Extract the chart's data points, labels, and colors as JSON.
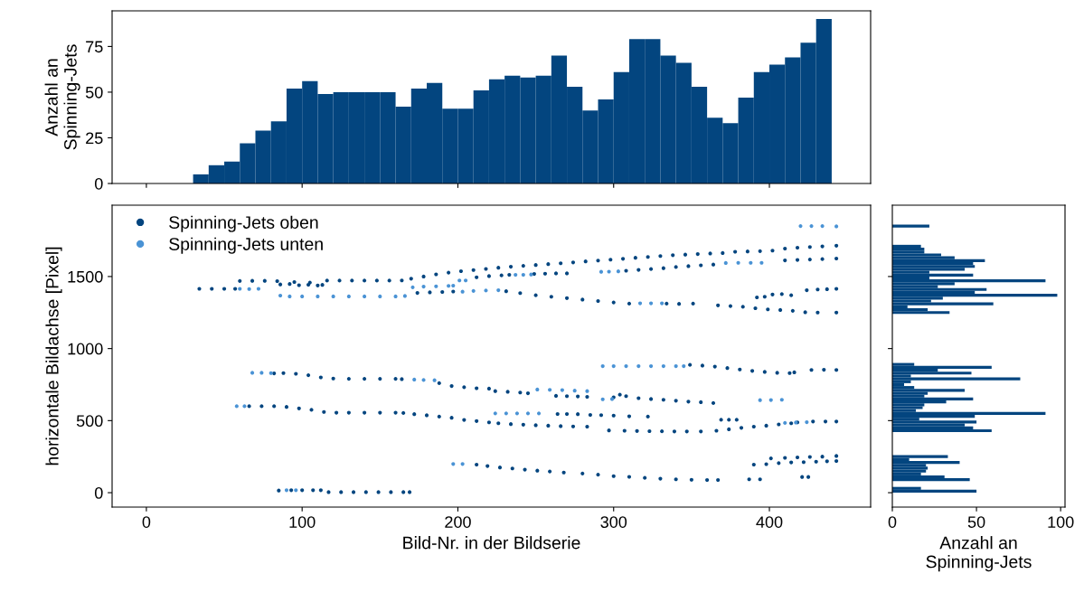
{
  "chart_data": [
    {
      "type": "histogram",
      "ylabel": "Anzahl an\nSpinning-Jets",
      "color": "#03457f",
      "bins": [
        30,
        40,
        50,
        60,
        70,
        80,
        90,
        100,
        110,
        120,
        130,
        140,
        150,
        160,
        170,
        180,
        190,
        200,
        210,
        220,
        230,
        240,
        250,
        260,
        270,
        280,
        290,
        300,
        310,
        320,
        330,
        340,
        350,
        360,
        370,
        380,
        390,
        400,
        410,
        420,
        430,
        440
      ],
      "values": [
        5,
        10,
        12,
        22,
        29,
        34,
        52,
        56,
        49,
        50,
        50,
        50,
        50,
        42,
        52,
        55,
        41,
        41,
        51,
        57,
        59,
        58,
        59,
        70,
        53,
        40,
        46,
        61,
        79,
        79,
        70,
        66,
        53,
        36,
        33,
        47,
        61,
        65,
        69,
        77,
        90
      ],
      "xlim": [
        -22,
        465
      ],
      "ylim": [
        0,
        94.5
      ],
      "xticks": [
        {
          "value": 0,
          "label": null
        },
        {
          "value": 100,
          "label": null
        },
        {
          "value": 200,
          "label": null
        },
        {
          "value": 300,
          "label": null
        },
        {
          "value": 400,
          "label": null
        }
      ],
      "yticks": [
        0,
        25,
        50,
        75
      ],
      "tick_labels": "y"
    },
    {
      "type": "scatter",
      "xlabel": "Bild-Nr. in der Bildserie",
      "ylabel": "horizontale Bildachse [Pixel]",
      "legend": "top left",
      "marker": "circle",
      "xlim": [
        -22,
        465
      ],
      "ylim": [
        -100,
        1995
      ],
      "xticks": [
        0,
        100,
        200,
        300,
        400
      ],
      "yticks": [
        0,
        500,
        1000,
        1500
      ],
      "series": [
        {
          "name": "Spinning-Jets oben",
          "color": "#03457f",
          "x": [
            34,
            42,
            50,
            57,
            60,
            68,
            76,
            84,
            86,
            92,
            98,
            104,
            110,
            113,
            95,
            105,
            116,
            124,
            132,
            140,
            148,
            156,
            164,
            170,
            178,
            186,
            194,
            202,
            210,
            218,
            226,
            234,
            242,
            250,
            258,
            266,
            274,
            282,
            290,
            298,
            306,
            314,
            322,
            330,
            338,
            346,
            354,
            362,
            370,
            378,
            386,
            394,
            402,
            410,
            418,
            426,
            434,
            443,
            174,
            182,
            190,
            197,
            212,
            220,
            228,
            233,
            249,
            256,
            263,
            270,
            308,
            316,
            324,
            332,
            340,
            348,
            356,
            364,
            410,
            418,
            426,
            434,
            443,
            231,
            240,
            250,
            260,
            270,
            280,
            290,
            300,
            310,
            334,
            342,
            351,
            367,
            375,
            383,
            391,
            399,
            407,
            415,
            423,
            431,
            443,
            392,
            397,
            402,
            408,
            414,
            424,
            431,
            437,
            443,
            82,
            88,
            96,
            104,
            112,
            120,
            130,
            140,
            150,
            160,
            164,
            188,
            196,
            204,
            212,
            220,
            224,
            232,
            240,
            245,
            263,
            270,
            277,
            283,
            349,
            357,
            365,
            373,
            381,
            389,
            397,
            405,
            413,
            416,
            427,
            435,
            443,
            300,
            304,
            308,
            316,
            324,
            332,
            340,
            348,
            356,
            364,
            66,
            74,
            82,
            90,
            98,
            106,
            114,
            122,
            130,
            140,
            150,
            160,
            165,
            172,
            180,
            188,
            196,
            204,
            212,
            220,
            226,
            234,
            242,
            250,
            258,
            266,
            274,
            283,
            264,
            270,
            277,
            285,
            292,
            300,
            310,
            322,
            297,
            307,
            315,
            323,
            331,
            339,
            347,
            356,
            366,
            374,
            382,
            390,
            398,
            406,
            414,
            418,
            369,
            374,
            379,
            428,
            436,
            443,
            212,
            219,
            227,
            235,
            243,
            251,
            259,
            268,
            280,
            290,
            300,
            310,
            320,
            330,
            340,
            350,
            360,
            367,
            387,
            394,
            421,
            425,
            390,
            398,
            406,
            414,
            422,
            430,
            437,
            443,
            401,
            410,
            418,
            426,
            434,
            443,
            85,
            93,
            100,
            107,
            112,
            117,
            125,
            133,
            141,
            149,
            157,
            165,
            169
          ],
          "values": [
            1415,
            1415,
            1415,
            1415,
            1469,
            1470,
            1470,
            1468,
            1445,
            1448,
            1440,
            1443,
            1438,
            1442,
            1462,
            1458,
            1472,
            1472,
            1472,
            1472,
            1472,
            1472,
            1473,
            1485,
            1500,
            1515,
            1527,
            1537,
            1545,
            1553,
            1561,
            1568,
            1574,
            1580,
            1586,
            1592,
            1598,
            1605,
            1611,
            1617,
            1623,
            1630,
            1636,
            1642,
            1648,
            1652,
            1656,
            1660,
            1663,
            1672,
            1674,
            1676,
            1680,
            1694,
            1700,
            1705,
            1709,
            1714,
            1386,
            1390,
            1393,
            1396,
            1495,
            1503,
            1508,
            1512,
            1518,
            1520,
            1522,
            1522,
            1540,
            1546,
            1552,
            1558,
            1566,
            1572,
            1578,
            1583,
            1612,
            1615,
            1618,
            1621,
            1625,
            1398,
            1385,
            1370,
            1360,
            1350,
            1340,
            1330,
            1320,
            1312,
            1312,
            1310,
            1312,
            1300,
            1295,
            1290,
            1280,
            1272,
            1268,
            1262,
            1252,
            1250,
            1250,
            1355,
            1360,
            1375,
            1378,
            1370,
            1405,
            1410,
            1412,
            1415,
            828,
            830,
            825,
            815,
            800,
            792,
            790,
            790,
            790,
            790,
            788,
            760,
            740,
            732,
            725,
            722,
            705,
            700,
            695,
            690,
            672,
            670,
            668,
            665,
            887,
            882,
            875,
            865,
            855,
            845,
            838,
            832,
            830,
            835,
            852,
            853,
            852,
            662,
            680,
            670,
            656,
            650,
            645,
            638,
            632,
            628,
            622,
            600,
            600,
            600,
            595,
            585,
            575,
            560,
            555,
            555,
            555,
            555,
            555,
            553,
            545,
            537,
            528,
            520,
            505,
            497,
            488,
            482,
            476,
            472,
            468,
            465,
            462,
            460,
            458,
            546,
            546,
            545,
            540,
            538,
            535,
            530,
            528,
            432,
            430,
            428,
            427,
            426,
            425,
            425,
            425,
            430,
            440,
            450,
            458,
            465,
            474,
            482,
            488,
            506,
            506,
            506,
            494,
            494,
            494,
            195,
            185,
            175,
            168,
            160,
            153,
            147,
            140,
            133,
            125,
            115,
            110,
            103,
            97,
            93,
            90,
            88,
            88,
            93,
            93,
            109,
            109,
            195,
            198,
            205,
            210,
            212,
            215,
            218,
            220,
            238,
            242,
            245,
            248,
            250,
            255,
            15,
            17,
            17,
            17,
            17,
            4,
            4,
            4,
            4,
            4,
            4,
            4,
            4
          ]
        },
        {
          "name": "Spinning-Jets unten",
          "color": "#4a93d5",
          "x": [
            60,
            66,
            72,
            86,
            92,
            100,
            110,
            120,
            130,
            140,
            150,
            160,
            166,
            171,
            178,
            186,
            194,
            197,
            201,
            205,
            237,
            242,
            247,
            292,
            297,
            303,
            372,
            380,
            388,
            395,
            203,
            210,
            218,
            226,
            317,
            324,
            331,
            420,
            427,
            434,
            443,
            68,
            74,
            80,
            172,
            178,
            185,
            251,
            259,
            267,
            275,
            283,
            293,
            300,
            308,
            316,
            324,
            332,
            340,
            345,
            293,
            299,
            394,
            401,
            408,
            58,
            63,
            224,
            231,
            238,
            245,
            252,
            410,
            417,
            424,
            197,
            203,
            90,
            96
          ],
          "values": [
            1415,
            1413,
            1415,
            1368,
            1362,
            1362,
            1362,
            1362,
            1362,
            1362,
            1362,
            1362,
            1365,
            1425,
            1430,
            1432,
            1435,
            1437,
            1473,
            1473,
            1512,
            1512,
            1514,
            1533,
            1534,
            1536,
            1594,
            1595,
            1595,
            1595,
            1395,
            1400,
            1403,
            1405,
            1314,
            1314,
            1314,
            1850,
            1850,
            1850,
            1848,
            832,
            832,
            830,
            785,
            782,
            780,
            716,
            714,
            712,
            708,
            705,
            878,
            878,
            878,
            878,
            878,
            878,
            878,
            878,
            648,
            650,
            642,
            643,
            645,
            600,
            600,
            550,
            550,
            550,
            550,
            550,
            484,
            487,
            489,
            199,
            199,
            17,
            17
          ]
        }
      ]
    },
    {
      "type": "histogram",
      "orientation": "horizontal",
      "xlabel": "Anzahl an\nSpinning-Jets",
      "color": "#03457f",
      "bins": [
        0,
        20,
        40,
        60,
        80,
        100,
        120,
        140,
        160,
        180,
        200,
        220,
        240,
        260,
        280,
        300,
        320,
        340,
        360,
        380,
        400,
        420,
        440,
        460,
        480,
        500,
        520,
        540,
        560,
        580,
        600,
        620,
        640,
        660,
        680,
        700,
        720,
        740,
        760,
        780,
        800,
        820,
        840,
        860,
        880,
        900,
        920,
        940,
        960,
        980,
        1000,
        1020,
        1040,
        1060,
        1080,
        1100,
        1120,
        1140,
        1160,
        1180,
        1200,
        1220,
        1240,
        1260,
        1280,
        1300,
        1320,
        1340,
        1360,
        1380,
        1400,
        1420,
        1440,
        1460,
        1480,
        1500,
        1520,
        1540,
        1560,
        1580,
        1600,
        1620,
        1640,
        1660,
        1680,
        1700,
        1720,
        1740,
        1760,
        1780,
        1800,
        1820,
        1840,
        1860
      ],
      "values": [
        50,
        17,
        0,
        0,
        46,
        31,
        17,
        20,
        21,
        20,
        40,
        10,
        33,
        0,
        0,
        0,
        0,
        0,
        0,
        0,
        0,
        59,
        48,
        43,
        50,
        16,
        49,
        91,
        14,
        18,
        19,
        32,
        48,
        19,
        21,
        43,
        13,
        7,
        11,
        76,
        11,
        47,
        27,
        59,
        13,
        0,
        0,
        0,
        0,
        0,
        0,
        0,
        0,
        0,
        0,
        0,
        0,
        0,
        0,
        0,
        0,
        0,
        34,
        21,
        9,
        60,
        23,
        30,
        98,
        49,
        56,
        27,
        37,
        91,
        22,
        48,
        22,
        43,
        49,
        48,
        55,
        37,
        29,
        19,
        19,
        17,
        0,
        0,
        0,
        0,
        0,
        0,
        22
      ],
      "xlim": [
        0,
        102.6
      ],
      "ylim": [
        -100,
        1995
      ],
      "xticks": [
        0,
        50,
        100
      ],
      "yticks": [
        {
          "value": 0,
          "label": null
        },
        {
          "value": 500,
          "label": null
        },
        {
          "value": 1000,
          "label": null
        },
        {
          "value": 1500,
          "label": null
        }
      ],
      "tick_labels": "x"
    }
  ]
}
